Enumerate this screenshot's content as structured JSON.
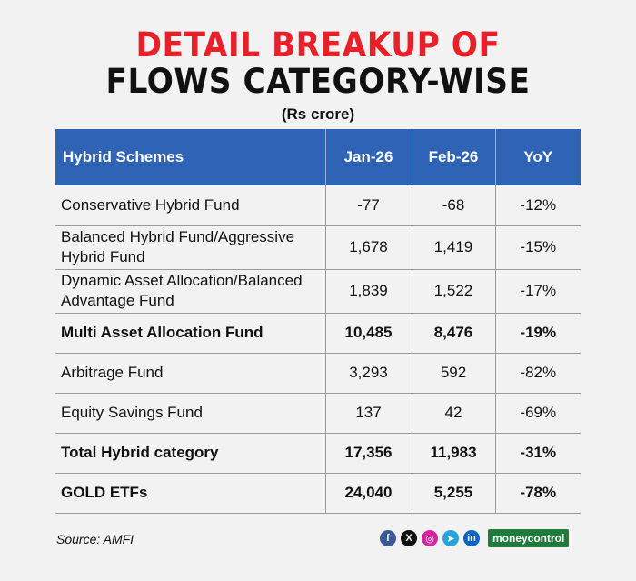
{
  "title": {
    "line1": "DETAIL BREAKUP OF",
    "line2": "FLOWS CATEGORY-WISE",
    "subtitle": "(Rs crore)"
  },
  "table": {
    "headers": [
      "Hybrid Schemes",
      "Jan-26",
      "Feb-26",
      "YoY"
    ],
    "rows": [
      {
        "name": "Conservative Hybrid Fund",
        "jan": "-77",
        "feb": "-68",
        "yoy": "-12%",
        "bold": false
      },
      {
        "name": "Balanced Hybrid Fund/Aggressive Hybrid Fund",
        "jan": "1,678",
        "feb": "1,419",
        "yoy": "-15%",
        "bold": false
      },
      {
        "name": "Dynamic Asset Allocation/Balanced Advantage Fund",
        "jan": "1,839",
        "feb": "1,522",
        "yoy": "-17%",
        "bold": false
      },
      {
        "name": "Multi Asset Allocation Fund",
        "jan": "10,485",
        "feb": "8,476",
        "yoy": "-19%",
        "bold": true
      },
      {
        "name": "Arbitrage Fund",
        "jan": "3,293",
        "feb": "592",
        "yoy": "-82%",
        "bold": false
      },
      {
        "name": "Equity Savings Fund",
        "jan": "137",
        "feb": "42",
        "yoy": "-69%",
        "bold": false
      },
      {
        "name": "Total Hybrid category",
        "jan": "17,356",
        "feb": "11,983",
        "yoy": "-31%",
        "bold": true
      },
      {
        "name": "GOLD ETFs",
        "jan": "24,040",
        "feb": "5,255",
        "yoy": "-78%",
        "bold": true
      }
    ]
  },
  "footer": {
    "source": "Source: AMFI",
    "brand": "moneycontrol",
    "social_icons": [
      {
        "name": "facebook-icon",
        "glyph": "f",
        "color": "#3b5998"
      },
      {
        "name": "x-icon",
        "glyph": "X",
        "color": "#111111"
      },
      {
        "name": "instagram-icon",
        "glyph": "◎",
        "color": "#d6249f"
      },
      {
        "name": "telegram-icon",
        "glyph": "➤",
        "color": "#2aa3d8"
      },
      {
        "name": "linkedin-icon",
        "glyph": "in",
        "color": "#0a66c2"
      }
    ]
  },
  "colors": {
    "title_red": "#e8202a",
    "header_blue": "#2e63b6",
    "brand_green": "#1f7a3c"
  }
}
